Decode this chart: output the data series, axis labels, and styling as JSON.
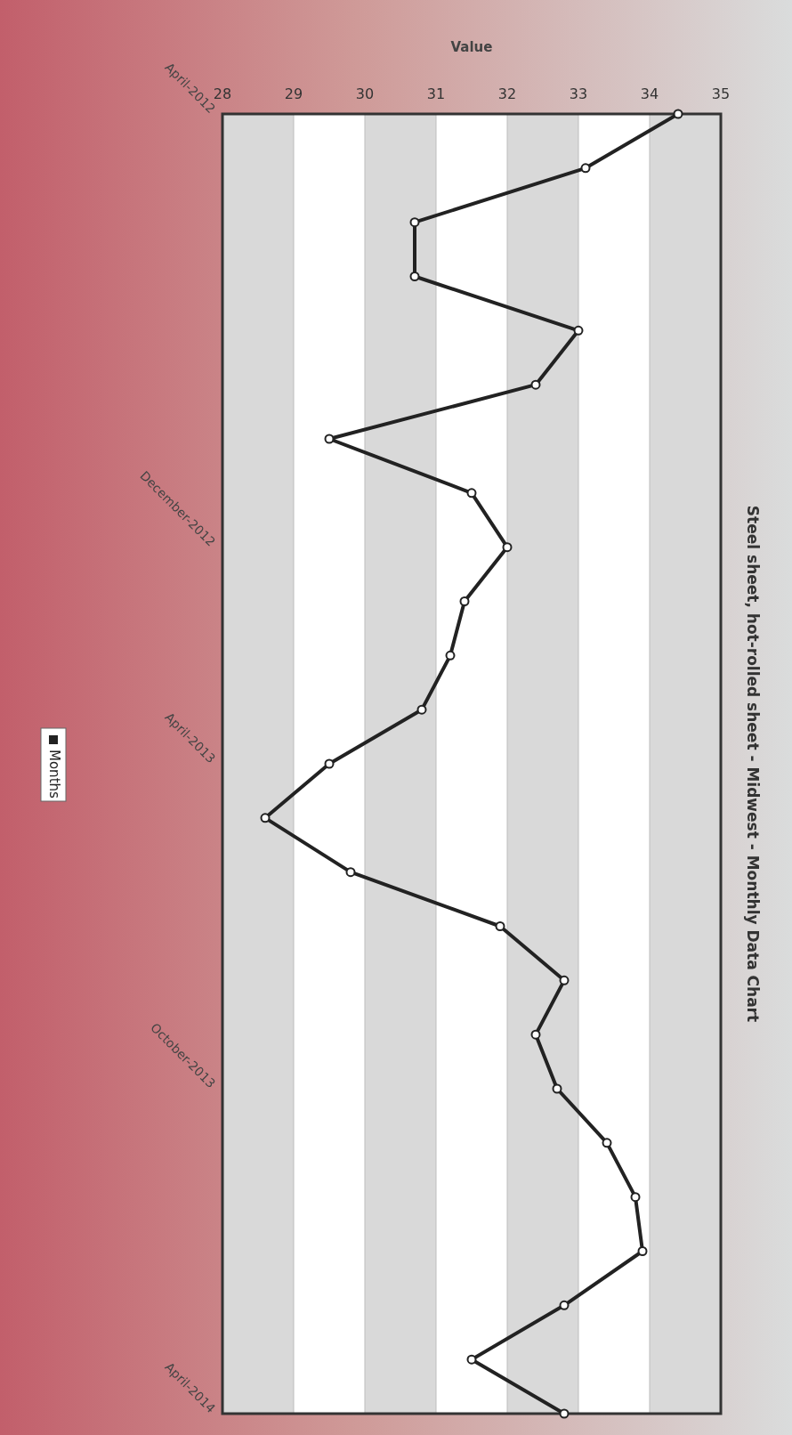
{
  "chart_data": {
    "type": "line",
    "orientation": "horizontal",
    "title": "Steel sheet, hot-rolled sheet  -  Midwest  -  Monthly Data Chart",
    "xlabel": "Value",
    "categories": [
      "April-2012",
      null,
      null,
      null,
      null,
      null,
      null,
      null,
      "December-2012",
      null,
      null,
      null,
      "April-2013",
      null,
      null,
      null,
      null,
      null,
      "October-2013",
      null,
      null,
      null,
      null,
      null,
      "April-2014"
    ],
    "series": [
      {
        "name": "Months",
        "color": "#222222",
        "values": [
          34.4,
          33.1,
          30.7,
          30.7,
          33.0,
          32.4,
          29.5,
          31.5,
          32.0,
          31.4,
          31.2,
          30.8,
          29.5,
          28.6,
          29.8,
          31.9,
          32.8,
          32.4,
          32.7,
          33.4,
          33.8,
          33.9,
          32.8,
          31.5,
          32.8
        ]
      }
    ],
    "xlim": [
      28,
      35
    ],
    "xticks": [
      28,
      29,
      30,
      31,
      32,
      33,
      34,
      35
    ],
    "grid": "x",
    "legend": "bottom",
    "marker": "circle",
    "line_style": "solid"
  }
}
